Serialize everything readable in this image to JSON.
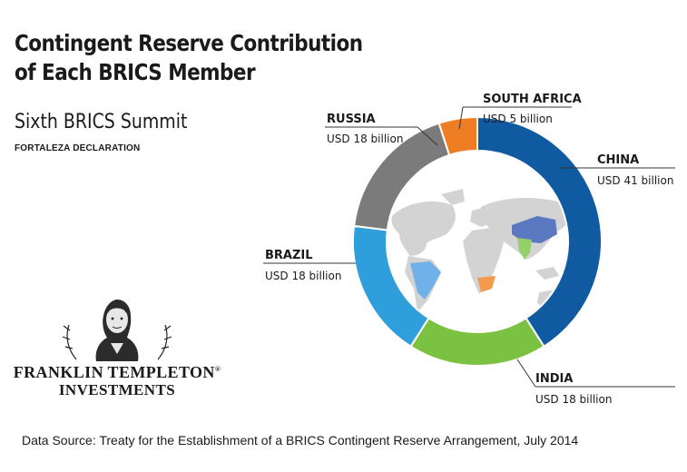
{
  "title_line1": "Contingent Reserve Contribution",
  "title_line2": "of Each BRICS Member",
  "subtitle": "Sixth BRICS Summit",
  "subnote": "FORTALEZA DECLARATION",
  "source": "Data Source:  Treaty for the Establishment of a BRICS Contingent Reserve Arrangement, July 2014",
  "logo": {
    "line1": "FRANKLIN TEMPLETON",
    "line2": "INVESTMENTS",
    "mark": "®"
  },
  "chart_data": {
    "type": "pie",
    "style": "donut",
    "unit": "USD billion",
    "slices": [
      {
        "name": "CHINA",
        "value": 41,
        "label": "USD 41 billion",
        "color": "#0f5aa0"
      },
      {
        "name": "INDIA",
        "value": 18,
        "label": "USD 18 billion",
        "color": "#7cc242"
      },
      {
        "name": "BRAZIL",
        "value": 18,
        "label": "USD 18 billion",
        "color": "#2e9fda"
      },
      {
        "name": "RUSSIA",
        "value": 18,
        "label": "USD 18 billion",
        "color": "#7b7b7b"
      },
      {
        "name": "SOUTH AFRICA",
        "value": 5,
        "label": "USD 5 billion",
        "color": "#ee7d23"
      }
    ],
    "center_image": "world-map-icon"
  }
}
